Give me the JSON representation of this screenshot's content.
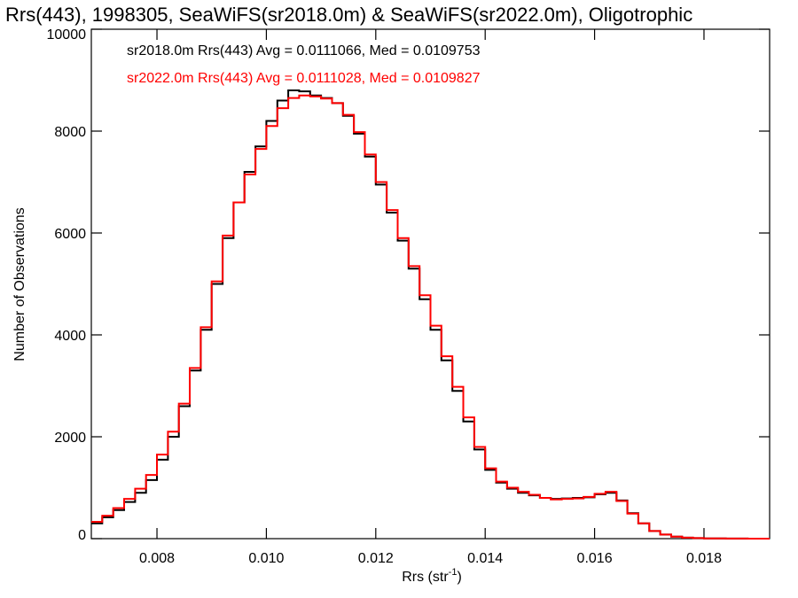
{
  "chart_data": {
    "type": "line",
    "step": true,
    "title": "Rrs(443), 1998305, SeaWiFS(sr2018.0m) & SeaWiFS(sr2022.0m), Oligotrophic",
    "xlabel_main": "Rrs (str",
    "xlabel_sup": "-1",
    "xlabel_end": ")",
    "ylabel": "Number of Observations",
    "xlim": [
      0.0068,
      0.0192
    ],
    "ylim": [
      0,
      10000
    ],
    "xticks": [
      0.008,
      0.01,
      0.012,
      0.014,
      0.016,
      0.018
    ],
    "xtick_labels": [
      "0.008",
      "0.010",
      "0.012",
      "0.014",
      "0.016",
      "0.018"
    ],
    "yticks": [
      0,
      2000,
      4000,
      6000,
      8000,
      10000
    ],
    "ytick_labels": [
      "0",
      "2000",
      "4000",
      "6000",
      "8000",
      "10000"
    ],
    "grid": false,
    "legend_position": "top-left",
    "colors": {
      "series1": "#000000",
      "series2": "#ff0000"
    },
    "legend": [
      "sr2018.0m Rrs(443) Avg = 0.0111066, Med = 0.0109753",
      "sr2022.0m Rrs(443) Avg = 0.0111028, Med = 0.0109827"
    ],
    "x": [
      0.0068,
      0.007,
      0.0072,
      0.0074,
      0.0076,
      0.0078,
      0.008,
      0.0082,
      0.0084,
      0.0086,
      0.0088,
      0.009,
      0.0092,
      0.0094,
      0.0096,
      0.0098,
      0.01,
      0.0102,
      0.0104,
      0.0106,
      0.0108,
      0.011,
      0.0112,
      0.0114,
      0.0116,
      0.0118,
      0.012,
      0.0122,
      0.0124,
      0.0126,
      0.0128,
      0.013,
      0.0132,
      0.0134,
      0.0136,
      0.0138,
      0.014,
      0.0142,
      0.0144,
      0.0146,
      0.0148,
      0.015,
      0.0152,
      0.0154,
      0.0156,
      0.0158,
      0.016,
      0.0162,
      0.0164,
      0.0166,
      0.0168,
      0.017,
      0.0172,
      0.0174,
      0.0176,
      0.0178,
      0.018,
      0.0182,
      0.0184,
      0.0186,
      0.0188,
      0.019,
      0.0192
    ],
    "series": [
      {
        "values": [
          300,
          420,
          560,
          720,
          900,
          1150,
          1550,
          2000,
          2600,
          3300,
          4100,
          5000,
          5900,
          6600,
          7200,
          7700,
          8200,
          8600,
          8800,
          8780,
          8700,
          8650,
          8550,
          8300,
          7950,
          7500,
          6950,
          6400,
          5850,
          5300,
          4700,
          4100,
          3500,
          2900,
          2300,
          1750,
          1350,
          1100,
          980,
          900,
          850,
          800,
          780,
          790,
          800,
          810,
          870,
          900,
          750,
          500,
          300,
          150,
          80,
          40,
          20,
          10,
          5,
          3,
          2,
          1,
          0,
          0,
          0
        ]
      },
      {
        "values": [
          330,
          450,
          600,
          780,
          980,
          1250,
          1650,
          2100,
          2650,
          3350,
          4150,
          5050,
          5950,
          6600,
          7150,
          7650,
          8100,
          8450,
          8650,
          8700,
          8680,
          8640,
          8550,
          8320,
          7980,
          7540,
          7000,
          6450,
          5900,
          5350,
          4780,
          4180,
          3580,
          2980,
          2380,
          1800,
          1380,
          1120,
          1000,
          920,
          860,
          800,
          770,
          780,
          790,
          820,
          880,
          920,
          740,
          490,
          300,
          150,
          80,
          40,
          20,
          10,
          5,
          3,
          2,
          1,
          0,
          0,
          0
        ]
      }
    ]
  }
}
